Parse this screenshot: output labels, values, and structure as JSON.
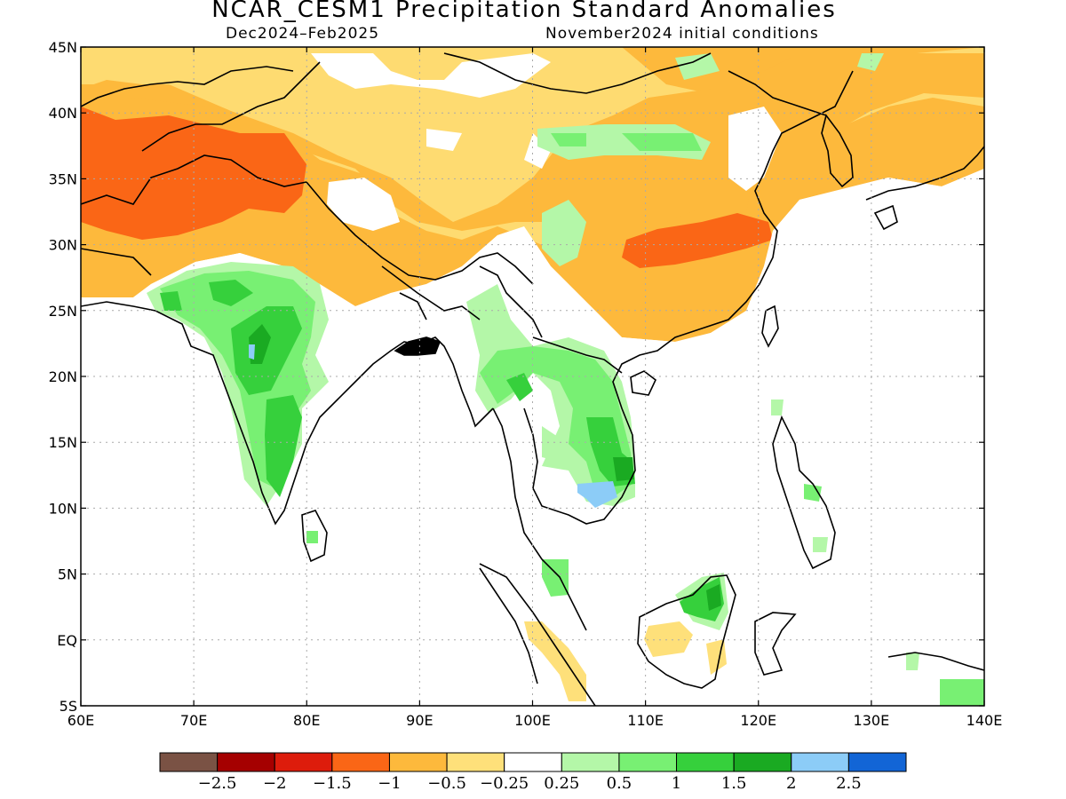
{
  "title": "NCAR_CESM1 Precipitation Standard Anomalies",
  "subtitle_left": "Dec2024–Feb2025",
  "subtitle_right": "November2024 initial conditions",
  "axes": {
    "lon_range": [
      60,
      140
    ],
    "lat_range": [
      -5,
      45
    ],
    "x_ticks": [
      "60E",
      "70E",
      "80E",
      "90E",
      "100E",
      "110E",
      "120E",
      "130E",
      "140E"
    ],
    "y_ticks": [
      "5S",
      "EQ",
      "5N",
      "10N",
      "15N",
      "20N",
      "25N",
      "30N",
      "35N",
      "40N",
      "45N"
    ],
    "grid": "dotted"
  },
  "colorbar": {
    "colors": [
      "#7a5244",
      "#a50000",
      "#dd1c0c",
      "#fa6616",
      "#fdb93c",
      "#fee07a",
      "#ffffff",
      "#b4f7a8",
      "#78f073",
      "#36d03c",
      "#1aaa22",
      "#8cccf7",
      "#1265d6"
    ],
    "labels": [
      "−2.5",
      "−2",
      "−1.5",
      "−1",
      "−0.5",
      "−0.25",
      "0.25",
      "0.5",
      "1",
      "1.5",
      "2",
      "2.5"
    ]
  }
}
